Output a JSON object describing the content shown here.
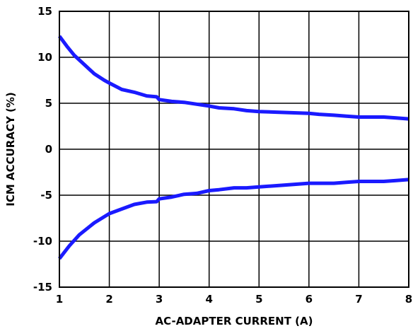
{
  "chart_data": {
    "type": "line",
    "xlabel": "AC-ADAPTER CURRENT (A)",
    "ylabel": "ICM ACCURACY (%)",
    "xlim": [
      1,
      8
    ],
    "ylim": [
      -15,
      15
    ],
    "xticks": [
      1,
      2,
      3,
      4,
      5,
      6,
      7,
      8
    ],
    "yticks": [
      15,
      10,
      5,
      0,
      -5,
      -10,
      -15
    ],
    "grid": true,
    "series_color": "#1a1aff",
    "series": [
      {
        "values": [
          [
            1.0,
            12.3
          ],
          [
            1.15,
            11.2
          ],
          [
            1.3,
            10.2
          ],
          [
            1.5,
            9.2
          ],
          [
            1.7,
            8.2
          ],
          [
            1.9,
            7.5
          ],
          [
            2.0,
            7.2
          ],
          [
            2.25,
            6.5
          ],
          [
            2.5,
            6.2
          ],
          [
            2.75,
            5.8
          ],
          [
            2.95,
            5.7
          ],
          [
            3.0,
            5.4
          ],
          [
            3.25,
            5.2
          ],
          [
            3.5,
            5.1
          ],
          [
            3.75,
            4.9
          ],
          [
            4.0,
            4.7
          ],
          [
            4.2,
            4.5
          ],
          [
            4.5,
            4.4
          ],
          [
            4.75,
            4.2
          ],
          [
            5.0,
            4.1
          ],
          [
            5.5,
            4.0
          ],
          [
            6.0,
            3.9
          ],
          [
            6.2,
            3.8
          ],
          [
            6.5,
            3.7
          ],
          [
            6.75,
            3.6
          ],
          [
            7.0,
            3.5
          ],
          [
            7.5,
            3.5
          ],
          [
            7.75,
            3.4
          ],
          [
            8.0,
            3.3
          ]
        ]
      },
      {
        "values": [
          [
            1.0,
            -11.9
          ],
          [
            1.2,
            -10.5
          ],
          [
            1.4,
            -9.3
          ],
          [
            1.7,
            -8.0
          ],
          [
            2.0,
            -7.0
          ],
          [
            2.25,
            -6.5
          ],
          [
            2.5,
            -6.0
          ],
          [
            2.75,
            -5.75
          ],
          [
            2.95,
            -5.7
          ],
          [
            3.0,
            -5.4
          ],
          [
            3.25,
            -5.2
          ],
          [
            3.5,
            -4.9
          ],
          [
            3.75,
            -4.8
          ],
          [
            4.0,
            -4.5
          ],
          [
            4.2,
            -4.4
          ],
          [
            4.5,
            -4.2
          ],
          [
            4.75,
            -4.2
          ],
          [
            5.0,
            -4.1
          ],
          [
            5.5,
            -3.9
          ],
          [
            6.0,
            -3.7
          ],
          [
            6.5,
            -3.7
          ],
          [
            6.75,
            -3.6
          ],
          [
            7.0,
            -3.5
          ],
          [
            7.5,
            -3.5
          ],
          [
            7.75,
            -3.4
          ],
          [
            8.0,
            -3.3
          ]
        ]
      }
    ]
  }
}
